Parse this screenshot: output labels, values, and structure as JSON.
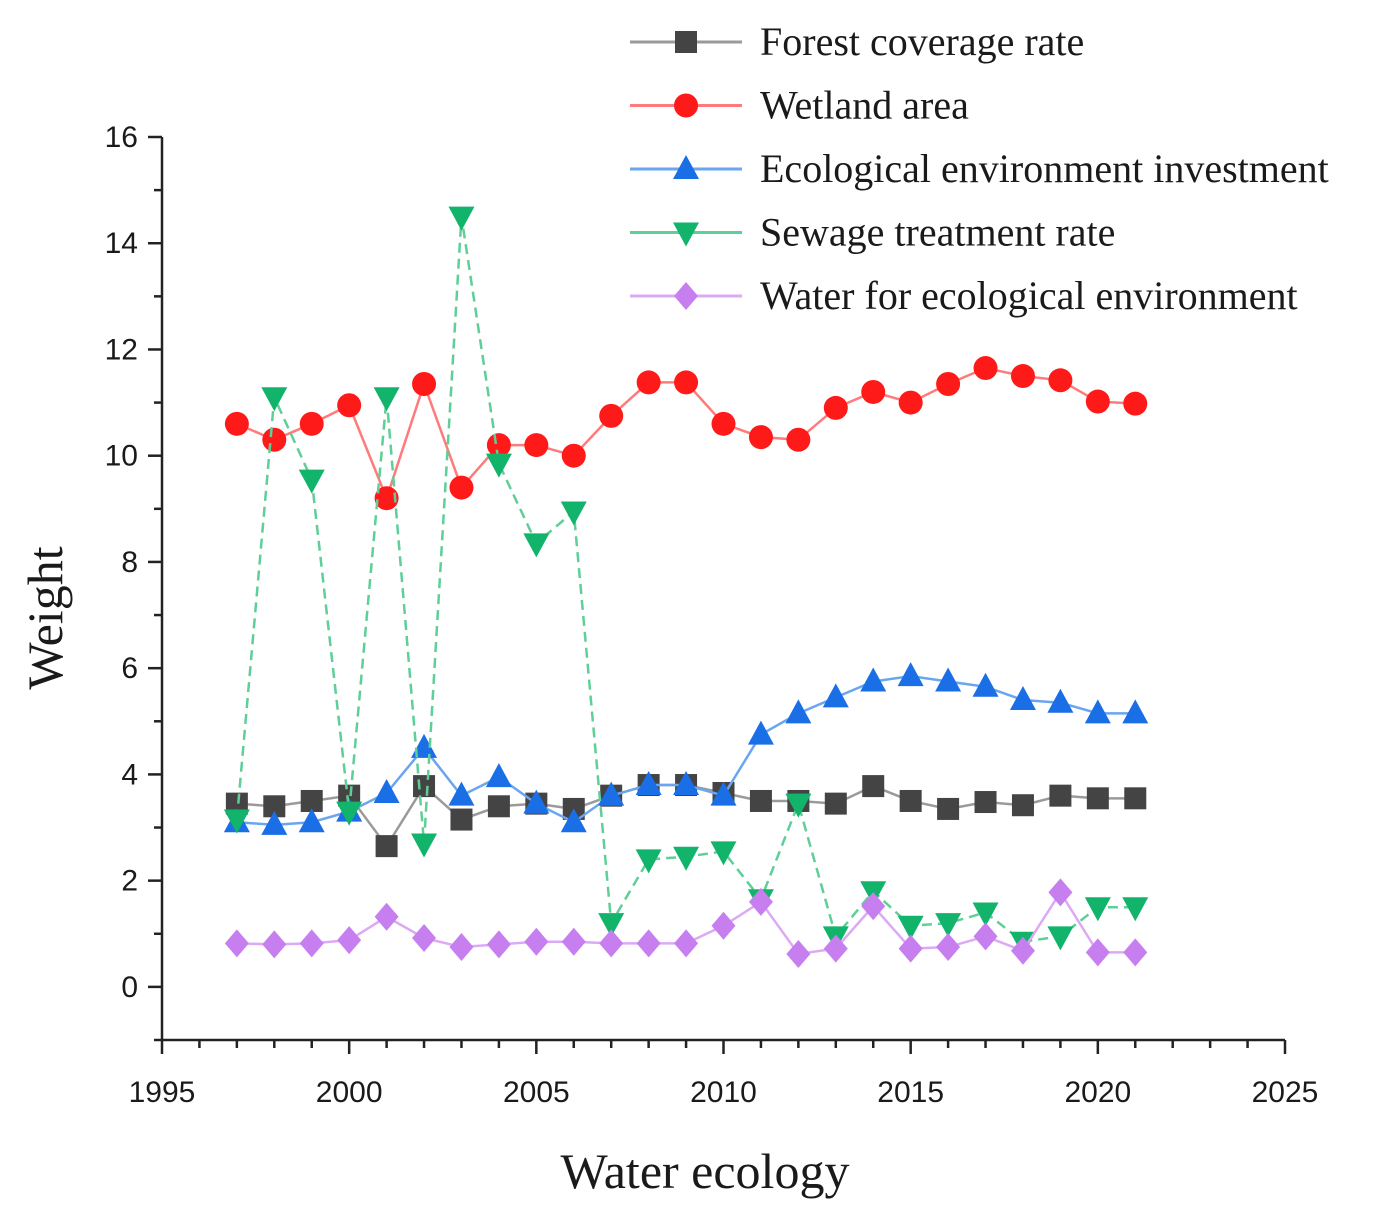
{
  "chart_data": {
    "type": "line",
    "xlabel": "Water ecology",
    "ylabel": "Weight",
    "xlim": [
      1995,
      2025
    ],
    "ylim": [
      -1,
      16
    ],
    "xticks": [
      1995,
      2000,
      2005,
      2010,
      2015,
      2020,
      2025
    ],
    "yticks": [
      0,
      2,
      4,
      6,
      8,
      10,
      12,
      14,
      16
    ],
    "grid": false,
    "legend_position": "top-right",
    "x": [
      1997,
      1998,
      1999,
      2000,
      2001,
      2002,
      2003,
      2004,
      2005,
      2006,
      2007,
      2008,
      2009,
      2010,
      2011,
      2012,
      2013,
      2014,
      2015,
      2016,
      2017,
      2018,
      2019,
      2020,
      2021
    ],
    "series": [
      {
        "name": "Forest coverage rate",
        "color": "#444444",
        "line_color": "#9a9a9a",
        "marker": "square",
        "values": [
          3.45,
          3.4,
          3.5,
          3.6,
          2.65,
          3.78,
          3.15,
          3.4,
          3.45,
          3.35,
          3.6,
          3.8,
          3.8,
          3.65,
          3.5,
          3.5,
          3.45,
          3.78,
          3.5,
          3.35,
          3.48,
          3.42,
          3.6,
          3.55,
          3.55
        ]
      },
      {
        "name": "Wetland area",
        "color": "#ff1a1a",
        "line_color": "#ff7a7a",
        "marker": "circle",
        "values": [
          10.6,
          10.3,
          10.6,
          10.95,
          9.2,
          11.35,
          9.4,
          10.2,
          10.2,
          10.0,
          10.75,
          11.38,
          11.38,
          10.6,
          10.35,
          10.3,
          10.9,
          11.2,
          11.0,
          11.35,
          11.65,
          11.5,
          11.42,
          11.02,
          10.98
        ]
      },
      {
        "name": "Ecological environment investment",
        "color": "#1a6fe6",
        "line_color": "#6aa6f0",
        "marker": "triangle-up",
        "values": [
          3.1,
          3.05,
          3.1,
          3.3,
          3.65,
          4.5,
          3.6,
          3.95,
          3.45,
          3.1,
          3.6,
          3.8,
          3.8,
          3.6,
          4.75,
          5.15,
          5.45,
          5.75,
          5.85,
          5.75,
          5.65,
          5.4,
          5.35,
          5.15,
          5.15
        ]
      },
      {
        "name": "Sewage treatment rate",
        "color": "#12b36b",
        "line_color": "#5fcf97",
        "marker": "triangle-down",
        "values": [
          3.15,
          11.1,
          9.55,
          3.3,
          11.1,
          2.7,
          14.5,
          9.85,
          8.35,
          8.95,
          1.2,
          2.4,
          2.45,
          2.55,
          1.65,
          3.45,
          0.95,
          1.8,
          1.15,
          1.2,
          1.4,
          0.85,
          0.95,
          1.5,
          1.5
        ]
      },
      {
        "name": "Water for ecological environment",
        "color": "#c77ff0",
        "line_color": "#dcaaf5",
        "marker": "diamond",
        "values": [
          0.82,
          0.8,
          0.82,
          0.88,
          1.32,
          0.92,
          0.75,
          0.8,
          0.85,
          0.85,
          0.82,
          0.82,
          0.82,
          1.15,
          1.6,
          0.62,
          0.72,
          1.52,
          0.72,
          0.75,
          0.95,
          0.68,
          1.78,
          0.65,
          0.65
        ]
      }
    ]
  }
}
